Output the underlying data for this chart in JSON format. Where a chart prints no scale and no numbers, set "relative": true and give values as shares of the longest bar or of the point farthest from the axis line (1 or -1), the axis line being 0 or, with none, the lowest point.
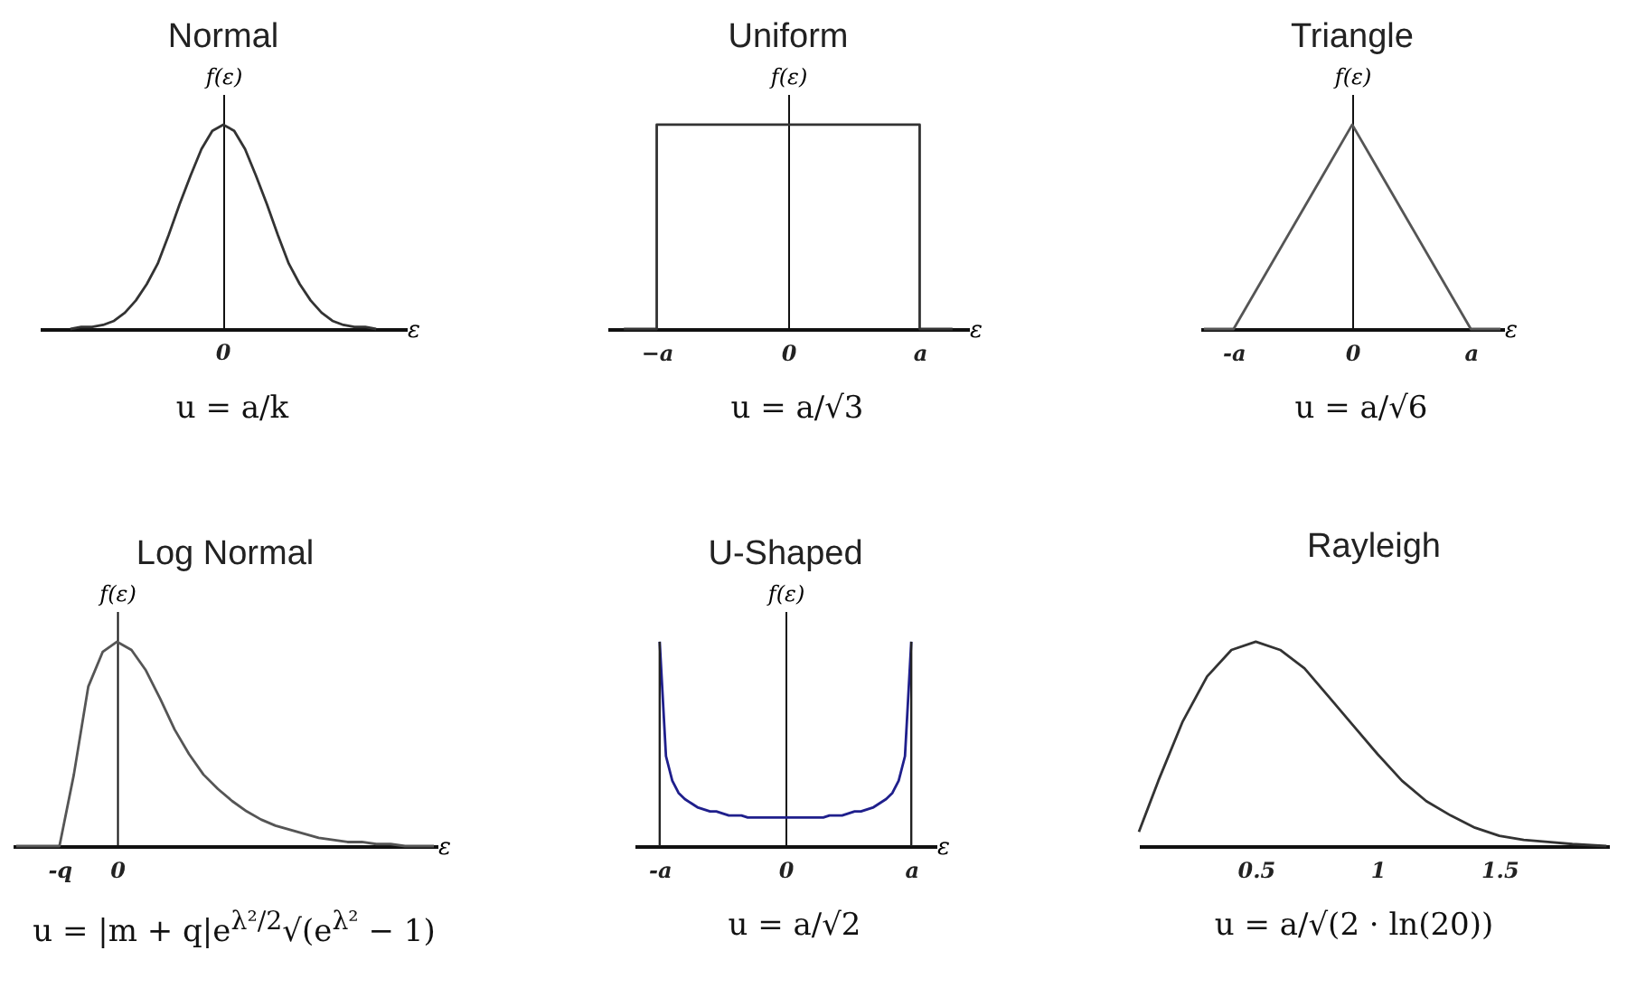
{
  "chart_data": [
    {
      "type": "line",
      "title": "Normal",
      "relative": true,
      "xlabel": "ε",
      "ylabel": "f(ε)",
      "annotations": [
        "0",
        "u = a/k"
      ],
      "categories": [
        null,
        null,
        null,
        null,
        null,
        null,
        null,
        null,
        null,
        null,
        null,
        null,
        null,
        null,
        null,
        null,
        null,
        null,
        null,
        null,
        null,
        null,
        null,
        null,
        null,
        null,
        null,
        null,
        null
      ],
      "series": [
        {
          "color": "#333333",
          "values": [
            0,
            0.01,
            0.01,
            0.02,
            0.04,
            0.08,
            0.14,
            0.22,
            0.32,
            0.46,
            0.61,
            0.75,
            0.88,
            0.97,
            1,
            0.97,
            0.88,
            0.75,
            0.61,
            0.46,
            0.32,
            0.22,
            0.14,
            0.08,
            0.04,
            0.02,
            0.01,
            0.01,
            0
          ]
        }
      ]
    },
    {
      "type": "step",
      "title": "Uniform",
      "relative": true,
      "xlabel": "ε",
      "ylabel": "f(ε)",
      "annotations": [
        "u = a/√3"
      ],
      "categories": [
        null,
        "−a",
        null,
        null,
        null,
        "0",
        null,
        null,
        null,
        "a",
        null
      ],
      "series": [
        {
          "color": "#333333",
          "values": [
            0,
            1,
            1,
            1,
            1,
            1,
            1,
            1,
            1,
            0,
            0
          ]
        }
      ]
    },
    {
      "type": "line",
      "title": "Triangle",
      "relative": true,
      "xlabel": "ε",
      "ylabel": "f(ε)",
      "annotations": [
        "u = a/√6"
      ],
      "categories": [
        null,
        "-a",
        null,
        null,
        null,
        "0",
        null,
        null,
        null,
        "a",
        null
      ],
      "series": [
        {
          "color": "#555555",
          "values": [
            0,
            0,
            0.25,
            0.5,
            0.75,
            1,
            0.75,
            0.5,
            0.25,
            0,
            0
          ]
        }
      ]
    },
    {
      "type": "line",
      "title": "Log Normal",
      "relative": true,
      "xlabel": "ε",
      "ylabel": "f(ε)",
      "annotations": [
        "u = |m + q|e$^{λ²/2}$√(e$^{λ²}$ − 1)"
      ],
      "categories": [
        null,
        null,
        null,
        "-q",
        null,
        null,
        null,
        "0",
        null,
        null,
        null,
        null,
        null,
        null,
        null,
        null,
        null,
        null,
        null,
        null,
        null,
        null,
        null,
        null,
        null,
        null,
        null,
        null,
        null,
        null
      ],
      "series": [
        {
          "color": "#555555",
          "values": [
            0,
            0,
            0,
            0,
            0.35,
            0.78,
            0.95,
            1,
            0.96,
            0.86,
            0.72,
            0.57,
            0.45,
            0.35,
            0.28,
            0.22,
            0.17,
            0.13,
            0.1,
            0.08,
            0.06,
            0.04,
            0.03,
            0.02,
            0.02,
            0.01,
            0.01,
            0,
            0,
            0
          ]
        }
      ]
    },
    {
      "type": "line",
      "title": "U-Shaped",
      "relative": true,
      "xlabel": "ε",
      "ylabel": "f(ε)",
      "annotations": [
        "u = a/√2"
      ],
      "categories": [
        null,
        null,
        null,
        null,
        "-a",
        null,
        null,
        null,
        null,
        null,
        null,
        null,
        null,
        null,
        null,
        null,
        null,
        null,
        null,
        null,
        null,
        null,
        null,
        null,
        "0",
        null,
        null,
        null,
        null,
        null,
        null,
        null,
        null,
        null,
        null,
        null,
        null,
        null,
        null,
        null,
        null,
        null,
        null,
        null,
        "a",
        null,
        null,
        null,
        null
      ],
      "ref_lines": [
        {
          "axis": "x",
          "value": "-a",
          "color": "#222222"
        },
        {
          "axis": "x",
          "value": "a",
          "color": "#222222"
        }
      ],
      "series": [
        {
          "color": "#1f1f8c",
          "values": [
            null,
            null,
            null,
            null,
            1,
            0.44,
            0.32,
            0.26,
            0.23,
            0.21,
            0.19,
            0.18,
            0.17,
            0.17,
            0.16,
            0.15,
            0.15,
            0.15,
            0.14,
            0.14,
            0.14,
            0.14,
            0.14,
            0.14,
            0.14,
            0.14,
            0.14,
            0.14,
            0.14,
            0.14,
            0.14,
            0.15,
            0.15,
            0.15,
            0.16,
            0.17,
            0.17,
            0.18,
            0.19,
            0.21,
            0.23,
            0.26,
            0.32,
            0.44,
            1,
            null,
            null,
            null,
            null
          ]
        }
      ]
    },
    {
      "type": "line",
      "title": "Rayleigh",
      "relative": true,
      "xlim": [
        0.02,
        1.95
      ],
      "xticks": [
        0.5,
        1,
        1.5
      ],
      "annotations": [
        "u = a/√(2 · ln(20))"
      ],
      "series": [
        {
          "color": "#333333",
          "x": [
            0.02,
            0.1,
            0.2,
            0.3,
            0.4,
            0.5,
            0.6,
            0.7,
            0.8,
            0.9,
            1,
            1.1,
            1.2,
            1.3,
            1.4,
            1.5,
            1.6,
            1.7,
            1.8,
            1.94
          ],
          "values": [
            0.07,
            0.32,
            0.61,
            0.83,
            0.96,
            1,
            0.96,
            0.87,
            0.73,
            0.59,
            0.45,
            0.32,
            0.22,
            0.15,
            0.09,
            0.05,
            0.03,
            0.02,
            0.01,
            0
          ]
        }
      ]
    }
  ]
}
